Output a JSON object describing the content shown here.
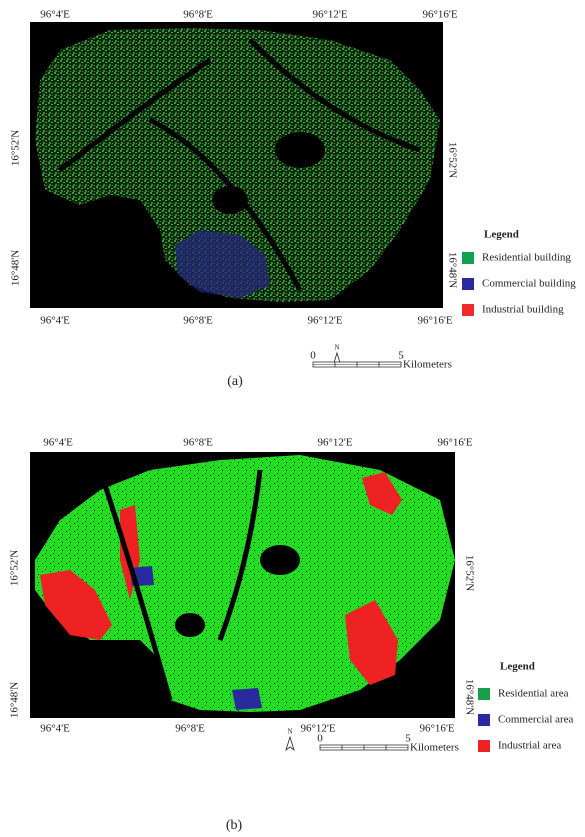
{
  "panels": [
    {
      "top_labels": [
        "96°4'E",
        "96°8'E",
        "96°12'E",
        "96°16'E"
      ],
      "bottom_labels": [
        "96°4'E",
        "96°8'E",
        "96°12'E",
        "96°16'E"
      ],
      "left_labels": [
        "16°52'N",
        "16°48'N"
      ],
      "right_labels": [
        "16°52'N",
        "16°48'N"
      ],
      "legend": {
        "title": "Legend",
        "items": [
          "Residential building",
          "Commercial building",
          "Industrial building"
        ]
      },
      "north": "N",
      "scale": {
        "start": "0",
        "end": "5",
        "unit": "Kilometers"
      },
      "caption": "(a)"
    },
    {
      "top_labels": [
        "96°4'E",
        "96°8'E",
        "96°12'E",
        "96°16'E"
      ],
      "bottom_labels": [
        "96°4'E",
        "96°8'E",
        "96°12'E",
        "96°16'E"
      ],
      "left_labels": [
        "16°52'N",
        "16°48'N"
      ],
      "right_labels": [
        "16°52'N",
        "16°48'N"
      ],
      "legend": {
        "title": "Legend",
        "items": [
          "Residential area",
          "Commercial area",
          "Industrial area"
        ]
      },
      "north": "N",
      "scale": {
        "start": "0",
        "end": "5",
        "unit": "Kilometers"
      },
      "caption": "(b)"
    }
  ]
}
